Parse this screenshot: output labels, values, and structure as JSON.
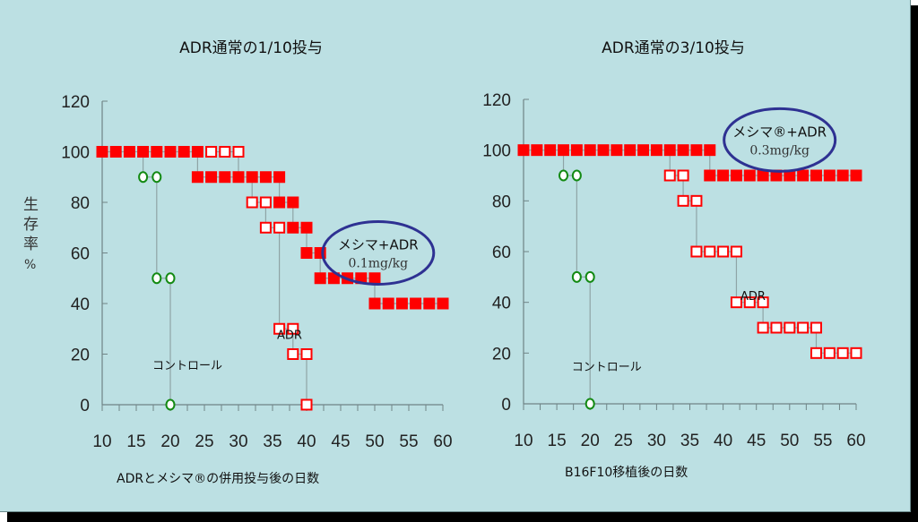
{
  "colors": {
    "background": "#bce0e3",
    "axis": "#6f8486",
    "connector": "#8fa4a6",
    "marker_red": "#ff0000",
    "marker_green": "#138a13",
    "ellipse": "#2e3192",
    "text": "#111111"
  },
  "ylabel": [
    "生",
    "存",
    "率",
    "%"
  ],
  "chart_data": [
    {
      "type": "scatter",
      "title": "ADR通常の1/10投与",
      "xlabel": "ADRとメシマ®の併用投与後の日数",
      "ylabel": "生存率 %",
      "xlim": [
        10,
        60
      ],
      "ylim": [
        0,
        120
      ],
      "xticks": [
        10,
        15,
        20,
        25,
        30,
        35,
        40,
        45,
        50,
        55,
        60
      ],
      "yticks": [
        0,
        20,
        40,
        60,
        80,
        100,
        120
      ],
      "grid": false,
      "annotations": [
        {
          "text": "コントロール",
          "x": 22.5,
          "y": 14
        },
        {
          "text": "ADR",
          "x": 37.5,
          "y": 26
        },
        {
          "text": "メシマ+ADR",
          "sub": "0.1mg/kg",
          "x": 50.5,
          "y": 60,
          "ellipse": true
        }
      ],
      "series": [
        {
          "name": "コントロール",
          "marker": "open-circle",
          "color": "#138a13",
          "steps": [
            {
              "y": 90,
              "x": [
                16,
                18
              ]
            },
            {
              "y": 50,
              "x": [
                18,
                20
              ]
            },
            {
              "y": 0,
              "x": [
                20
              ]
            }
          ],
          "drop_from": {
            "x": 16,
            "y": 100
          }
        },
        {
          "name": "ADR",
          "marker": "open-square",
          "color": "#ff0000",
          "steps": [
            {
              "y": 100,
              "x": [
                26,
                28,
                30
              ]
            },
            {
              "y": 80,
              "x": [
                32,
                34
              ]
            },
            {
              "y": 70,
              "x": [
                34,
                36
              ]
            },
            {
              "y": 30,
              "x": [
                36,
                38
              ]
            },
            {
              "y": 20,
              "x": [
                38,
                40
              ]
            },
            {
              "y": 0,
              "x": [
                40
              ]
            }
          ],
          "drop_from": {
            "x": 30,
            "y": 100,
            "to_y": 90,
            "note": "30 → 90 then open at 32 drops from filled row"
          }
        },
        {
          "name": "メシマ+ADR",
          "marker": "filled-square",
          "color": "#ff0000",
          "steps": [
            {
              "y": 100,
              "x": [
                10,
                12,
                14,
                16,
                18,
                20,
                22,
                24
              ]
            },
            {
              "y": 90,
              "x": [
                24,
                26,
                28,
                30,
                32,
                34,
                36
              ]
            },
            {
              "y": 80,
              "x": [
                36,
                38
              ]
            },
            {
              "y": 70,
              "x": [
                38,
                40
              ]
            },
            {
              "y": 60,
              "x": [
                40,
                42
              ]
            },
            {
              "y": 50,
              "x": [
                42,
                44,
                46,
                48,
                50
              ]
            },
            {
              "y": 40,
              "x": [
                50,
                52,
                54,
                56,
                58,
                60
              ]
            }
          ]
        }
      ],
      "connectors": [
        {
          "x": 16,
          "y1": 100,
          "y2": 90
        },
        {
          "x": 18,
          "y1": 90,
          "y2": 50
        },
        {
          "x": 20,
          "y1": 50,
          "y2": 0
        },
        {
          "x": 24,
          "y1": 100,
          "y2": 90
        },
        {
          "x": 30,
          "y1": 100,
          "y2": 90
        },
        {
          "x": 32,
          "y1": 90,
          "y2": 80
        },
        {
          "x": 34,
          "y1": 80,
          "y2": 70
        },
        {
          "x": 36,
          "y1": 90,
          "y2": 80
        },
        {
          "x": 36,
          "y1": 70,
          "y2": 30
        },
        {
          "x": 38,
          "y1": 80,
          "y2": 70
        },
        {
          "x": 38,
          "y1": 30,
          "y2": 20
        },
        {
          "x": 40,
          "y1": 70,
          "y2": 60
        },
        {
          "x": 40,
          "y1": 20,
          "y2": 0
        },
        {
          "x": 42,
          "y1": 60,
          "y2": 50
        },
        {
          "x": 50,
          "y1": 50,
          "y2": 40
        }
      ]
    },
    {
      "type": "scatter",
      "title": "ADR通常の3/10投与",
      "xlabel": "B16F10移植後の日数",
      "ylabel": "生存率 %",
      "xlim": [
        10,
        60
      ],
      "ylim": [
        0,
        120
      ],
      "xticks": [
        10,
        15,
        20,
        25,
        30,
        35,
        40,
        45,
        50,
        55,
        60
      ],
      "yticks": [
        0,
        20,
        40,
        60,
        80,
        100,
        120
      ],
      "grid": false,
      "annotations": [
        {
          "text": "コントロール",
          "x": 22.5,
          "y": 13
        },
        {
          "text": "ADR",
          "x": 44.5,
          "y": 41
        },
        {
          "text": "メシマ®+ADR",
          "sub": "0.3mg/kg",
          "x": 48.5,
          "y": 104,
          "ellipse": true
        }
      ],
      "series": [
        {
          "name": "コントロール",
          "marker": "open-circle",
          "color": "#138a13",
          "steps": [
            {
              "y": 90,
              "x": [
                16,
                18
              ]
            },
            {
              "y": 50,
              "x": [
                18,
                20
              ]
            },
            {
              "y": 0,
              "x": [
                20
              ]
            }
          ]
        },
        {
          "name": "ADR",
          "marker": "open-square",
          "color": "#ff0000",
          "steps": [
            {
              "y": 90,
              "x": [
                32,
                34
              ]
            },
            {
              "y": 80,
              "x": [
                34,
                36
              ]
            },
            {
              "y": 60,
              "x": [
                36,
                38,
                40,
                42
              ]
            },
            {
              "y": 40,
              "x": [
                42,
                44,
                46
              ]
            },
            {
              "y": 30,
              "x": [
                46,
                48,
                50,
                52,
                54
              ]
            },
            {
              "y": 20,
              "x": [
                54,
                56,
                58,
                60
              ]
            }
          ]
        },
        {
          "name": "メシマ®+ADR",
          "marker": "filled-square",
          "color": "#ff0000",
          "steps": [
            {
              "y": 100,
              "x": [
                10,
                12,
                14,
                16,
                18,
                20,
                22,
                24,
                26,
                28,
                30,
                32,
                34,
                36,
                38
              ]
            },
            {
              "y": 90,
              "x": [
                38,
                40,
                42,
                44,
                46,
                48,
                50,
                52,
                54,
                56,
                58,
                60
              ]
            }
          ]
        }
      ],
      "connectors": [
        {
          "x": 16,
          "y1": 100,
          "y2": 90
        },
        {
          "x": 18,
          "y1": 90,
          "y2": 50
        },
        {
          "x": 20,
          "y1": 50,
          "y2": 0
        },
        {
          "x": 32,
          "y1": 100,
          "y2": 90
        },
        {
          "x": 34,
          "y1": 90,
          "y2": 80
        },
        {
          "x": 36,
          "y1": 80,
          "y2": 60
        },
        {
          "x": 38,
          "y1": 100,
          "y2": 90
        },
        {
          "x": 42,
          "y1": 60,
          "y2": 40
        },
        {
          "x": 46,
          "y1": 40,
          "y2": 30
        },
        {
          "x": 54,
          "y1": 30,
          "y2": 20
        }
      ]
    }
  ]
}
